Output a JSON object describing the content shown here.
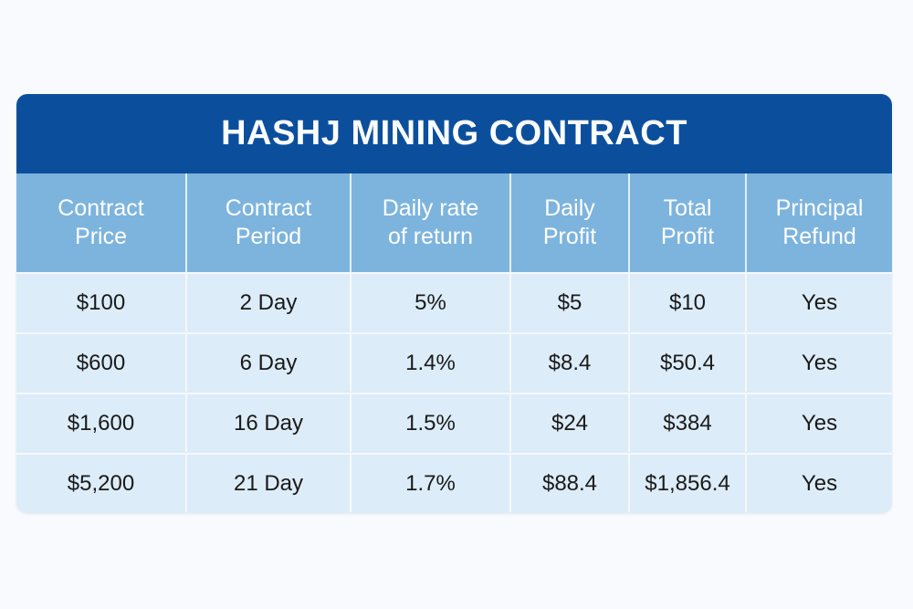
{
  "table": {
    "title": "HASHJ MINING CONTRACT",
    "header": [
      [
        "Contract",
        "Price"
      ],
      [
        "Contract",
        "Period"
      ],
      [
        "Daily rate",
        "of return"
      ],
      [
        "Daily",
        "Profit"
      ],
      [
        "Total",
        "Profit"
      ],
      [
        "Principal",
        "Refund"
      ]
    ],
    "rows": [
      [
        "$100",
        "2 Day",
        "5%",
        "$5",
        "$10",
        "Yes"
      ],
      [
        "$600",
        "6 Day",
        "1.4%",
        "$8.4",
        "$50.4",
        "Yes"
      ],
      [
        "$1,600",
        "16 Day",
        "1.5%",
        "$24",
        "$384",
        "Yes"
      ],
      [
        "$5,200",
        "21 Day",
        "1.7%",
        "$88.4",
        "$1,856.4",
        "Yes"
      ]
    ]
  }
}
